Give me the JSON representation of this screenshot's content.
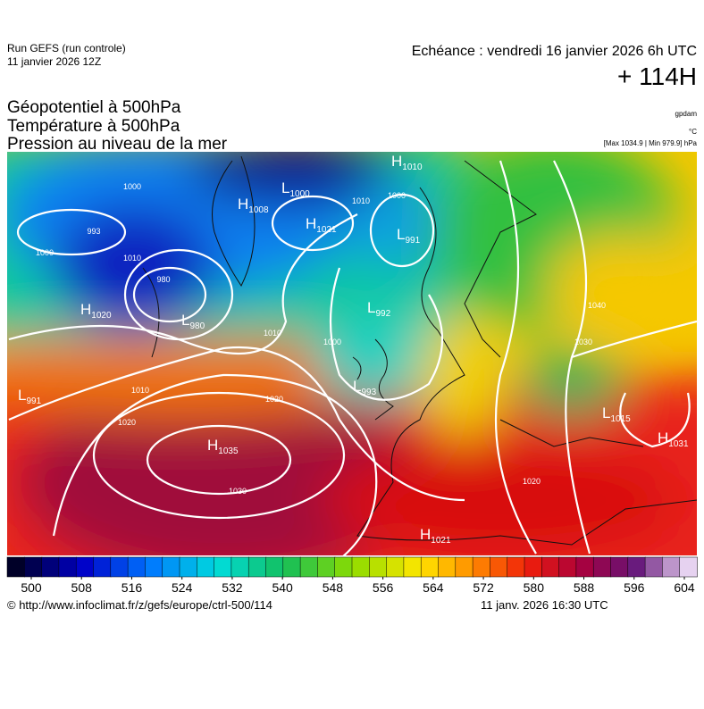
{
  "header": {
    "run": "Run GEFS (run controle)",
    "run_date": "11 janvier 2026 12Z",
    "echeance": "Echéance : vendredi 16 janvier 2026 6h UTC",
    "lead": "+ 114H",
    "title_lines": [
      "Géopotentiel à 500hPa",
      "Température à 500hPa",
      "Pression au niveau de la mer"
    ],
    "unit_gpdam": "gpdam",
    "unit_c": "°C",
    "maxmin": "[Max 1034.9 | Min 979.9] hPa"
  },
  "pressure_centers": [
    {
      "type": "H",
      "value": "1010"
    },
    {
      "type": "L",
      "value": "1000"
    },
    {
      "type": "H",
      "value": "1008"
    },
    {
      "type": "H",
      "value": "1021"
    },
    {
      "type": "L",
      "value": "991"
    },
    {
      "type": "H",
      "value": "1020"
    },
    {
      "type": "L",
      "value": "980"
    },
    {
      "type": "L",
      "value": "992"
    },
    {
      "type": "L",
      "value": "993"
    },
    {
      "type": "L",
      "value": "991"
    },
    {
      "type": "H",
      "value": "1035"
    },
    {
      "type": "H",
      "value": "1021"
    },
    {
      "type": "L",
      "value": "1015"
    },
    {
      "type": "H",
      "value": "1031"
    }
  ],
  "isobar_labels": [
    "1000",
    "993",
    "1000",
    "1010",
    "980",
    "1010",
    "1000",
    "1010",
    "1000",
    "1010",
    "1020",
    "1030",
    "1020",
    "1030",
    "1040",
    "1020"
  ],
  "colorbar": {
    "ticks": [
      500,
      508,
      516,
      524,
      532,
      540,
      548,
      556,
      564,
      572,
      580,
      588,
      596,
      604
    ]
  },
  "footer": {
    "url": "© http://www.infoclimat.fr/z/gefs/europe/ctrl-500/114",
    "timestamp": "11 janv. 2026 16:30 UTC"
  }
}
